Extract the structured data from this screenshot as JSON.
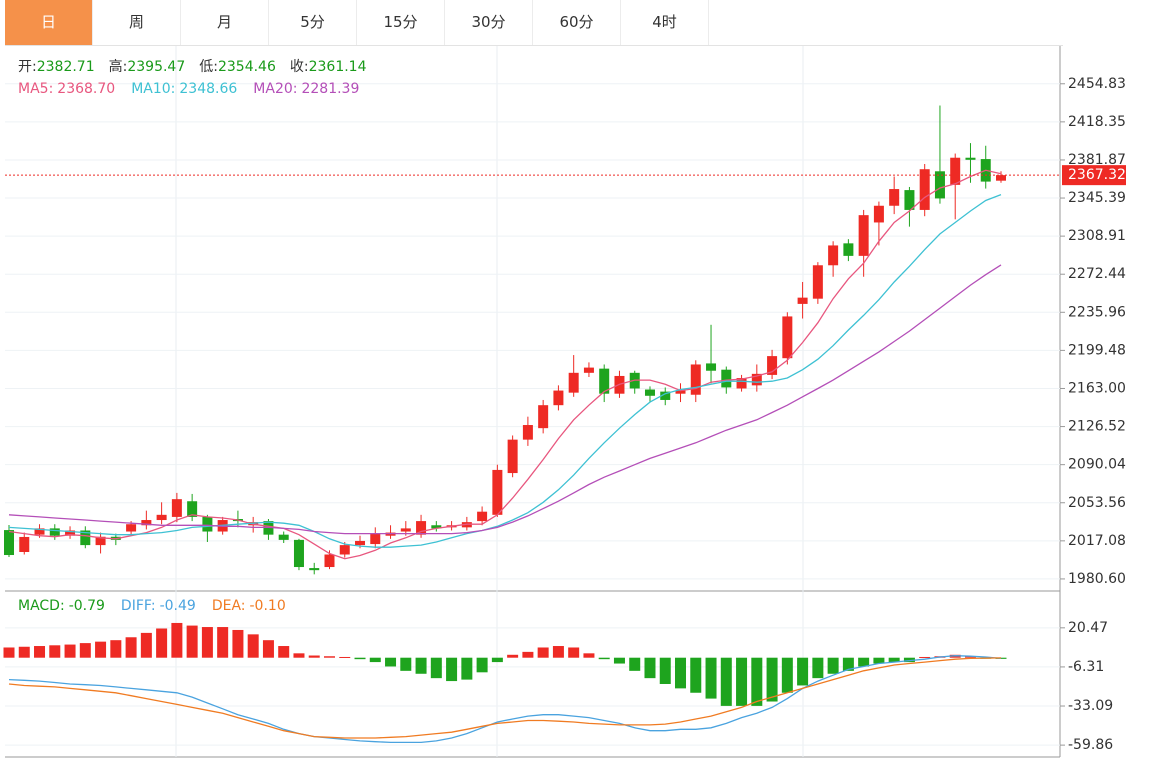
{
  "tabs": {
    "items": [
      "日",
      "周",
      "月",
      "5分",
      "15分",
      "30分",
      "60分",
      "4时"
    ],
    "active": 0
  },
  "info": [
    {
      "label": "开:",
      "value": 2382.71
    },
    {
      "label": "高:",
      "value": 2395.47
    },
    {
      "label": "低:",
      "value": 2354.46
    },
    {
      "label": "收:",
      "value": 2361.14
    }
  ],
  "chart_data": [
    {
      "type": "candlestick",
      "up_color": "#ee2a24",
      "down_color": "#1ea41e",
      "value_color": "#1a9a1a",
      "open": [
        2027.4,
        2006.4,
        2023,
        2029,
        2022,
        2027,
        2013,
        2021,
        2026,
        2032,
        2037,
        2040,
        2055,
        2040,
        2026,
        2038,
        2032,
        2036,
        2023,
        2018,
        1991,
        1992,
        2004,
        2013,
        2014,
        2022,
        2026,
        2023,
        2032,
        2030,
        2030,
        2036,
        2042,
        2082,
        2114,
        2125,
        2147,
        2159,
        2178,
        2182,
        2158,
        2178,
        2162,
        2160,
        2158,
        2157,
        2187,
        2181,
        2163,
        2166,
        2176,
        2192,
        2244,
        2249,
        2281,
        2302,
        2290,
        2322,
        2338,
        2353,
        2334,
        2371,
        2358,
        2384,
        2382.71,
        2362
      ],
      "high": [
        2032.2,
        2025,
        2033,
        2033,
        2031,
        2031,
        2025,
        2024,
        2036,
        2046,
        2054,
        2063,
        2062,
        2042,
        2040,
        2046,
        2040,
        2038,
        2026,
        2019,
        1996,
        2008,
        2016,
        2022,
        2030,
        2032,
        2036,
        2042,
        2036,
        2036,
        2040,
        2050,
        2090,
        2118,
        2136,
        2152,
        2166,
        2195,
        2188,
        2186,
        2180,
        2180,
        2165,
        2164,
        2168,
        2190,
        2224,
        2184,
        2176,
        2186,
        2200,
        2236,
        2265,
        2284,
        2304,
        2306,
        2334,
        2342,
        2366,
        2356,
        2378,
        2434,
        2388,
        2398,
        2395.47,
        2371
      ],
      "low": [
        2001.6,
        2004,
        2020,
        2018,
        2019,
        2010,
        2005,
        2013,
        2022,
        2028,
        2033,
        2035,
        2036,
        2016,
        2023,
        2030,
        2025,
        2018,
        2015,
        1989,
        1985,
        1990,
        2001,
        2010,
        2010,
        2019,
        2022,
        2020,
        2026,
        2027,
        2027,
        2032,
        2040,
        2078,
        2108,
        2120,
        2142,
        2155,
        2174,
        2150,
        2154,
        2158,
        2150,
        2147,
        2150,
        2150,
        2168,
        2158,
        2160,
        2160,
        2172,
        2186,
        2230,
        2244,
        2270,
        2285,
        2270,
        2300,
        2330,
        2318,
        2328,
        2340,
        2325,
        2360,
        2354.46,
        2360
      ],
      "close": [
        2003.5,
        2020.8,
        2029,
        2022,
        2027,
        2013,
        2021,
        2018,
        2033,
        2037,
        2042,
        2057,
        2040,
        2026,
        2037,
        2036,
        2035,
        2023,
        2018,
        1992,
        1989,
        2004,
        2013,
        2017,
        2024,
        2025,
        2029,
        2036,
        2029,
        2032,
        2035,
        2045,
        2085,
        2114,
        2128,
        2147,
        2161,
        2178,
        2183,
        2158,
        2175,
        2163,
        2156,
        2152,
        2161,
        2186,
        2180,
        2164,
        2173,
        2177,
        2194,
        2232,
        2250,
        2281,
        2300,
        2290,
        2329,
        2338,
        2354,
        2334,
        2373,
        2345,
        2384,
        2382,
        2361.14,
        2367.32
      ],
      "series": [
        {
          "name": "MA5:",
          "color": "#e8577f",
          "legend_label": "2368.70",
          "values": [
            2026,
            2024,
            2022,
            2021,
            2023,
            2022,
            2020,
            2019,
            2022,
            2025,
            2030,
            2037,
            2042,
            2040,
            2039,
            2037,
            2033,
            2031,
            2029,
            2023,
            2014,
            2005,
            2000,
            2003,
            2008,
            2015,
            2020,
            2026,
            2029,
            2031,
            2033,
            2033,
            2042,
            2058,
            2076,
            2095,
            2115,
            2133,
            2147,
            2160,
            2167,
            2171,
            2171,
            2167,
            2161,
            2163,
            2169,
            2171,
            2172,
            2175,
            2179,
            2190,
            2207,
            2226,
            2249,
            2268,
            2283,
            2304,
            2322,
            2333,
            2346,
            2355,
            2359,
            2366,
            2372,
            2368.7
          ]
        },
        {
          "name": "MA10:",
          "color": "#3ec1d3",
          "values": [
            2030,
            2029,
            2028,
            2027,
            2026,
            2025,
            2024,
            2023,
            2023,
            2024,
            2025,
            2027,
            2030,
            2031,
            2032,
            2033,
            2034,
            2035,
            2034,
            2032,
            2026,
            2019,
            2014,
            2012,
            2011,
            2011,
            2012,
            2013,
            2016,
            2020,
            2024,
            2027,
            2031,
            2037,
            2044,
            2054,
            2066,
            2080,
            2096,
            2111,
            2125,
            2138,
            2150,
            2158,
            2162,
            2164,
            2167,
            2170,
            2170,
            2169,
            2170,
            2173,
            2181,
            2191,
            2204,
            2219,
            2233,
            2248,
            2265,
            2280,
            2296,
            2311,
            2322,
            2333,
            2343,
            2348.66
          ]
        },
        {
          "name": "MA20:",
          "color": "#b44fb8",
          "values": [
            2042,
            2041,
            2040,
            2039,
            2038,
            2037,
            2036,
            2035,
            2034,
            2033,
            2032,
            2032,
            2032,
            2032,
            2031,
            2031,
            2030,
            2030,
            2029,
            2028,
            2026,
            2025,
            2024,
            2024,
            2024,
            2024,
            2024,
            2024,
            2024,
            2024,
            2025,
            2027,
            2030,
            2035,
            2041,
            2048,
            2055,
            2063,
            2071,
            2078,
            2084,
            2090,
            2096,
            2101,
            2106,
            2111,
            2117,
            2123,
            2128,
            2133,
            2140,
            2147,
            2155,
            2163,
            2171,
            2180,
            2189,
            2198,
            2208,
            2218,
            2229,
            2240,
            2251,
            2262,
            2272,
            2281.39
          ]
        }
      ],
      "ylim": [
        1970,
        2491
      ],
      "yticks": [
        2454.83,
        2418.35,
        2381.87,
        2345.39,
        2308.91,
        2272.44,
        2235.96,
        2199.48,
        {
          "value": 2163,
          "label": "2163.00"
        },
        2126.52,
        2090.04,
        2053.56,
        2017.08,
        {
          "value": 1980.6,
          "label": "1980.60"
        }
      ],
      "grid": true
    },
    {
      "type": "macd",
      "bars_name": "MACD:",
      "bars_color": "#1a9a1a",
      "up_color": "#ee2a24",
      "down_color": "#1ea41e",
      "bars": [
        7,
        7.5,
        8,
        8.5,
        9,
        10,
        11,
        12,
        14,
        17,
        20,
        23.8,
        22,
        21,
        21,
        19,
        16,
        12,
        8,
        3,
        1.5,
        1,
        0.5,
        -1,
        -3,
        -6,
        -9,
        -11,
        -14,
        -16,
        -15,
        -10,
        -3,
        2,
        4,
        7,
        8,
        7,
        3,
        -1,
        -4,
        -9,
        -14,
        -18,
        -21,
        -24,
        -28,
        -33,
        -33,
        -33,
        -30,
        -24,
        -19,
        -14,
        -11,
        -9,
        -6,
        -4,
        -3,
        -3,
        0.5,
        1,
        2,
        1,
        -0.5,
        -0.79
      ],
      "series": [
        {
          "name": "DIFF:",
          "color": "#4aa3df",
          "values": [
            -15,
            -15.5,
            -16,
            -17,
            -18,
            -18.5,
            -19,
            -20,
            -21,
            -22,
            -23,
            -24,
            -27,
            -31,
            -35,
            -39,
            -42,
            -45,
            -49,
            -52,
            -54,
            -55,
            -56,
            -57,
            -57.5,
            -58,
            -58,
            -58,
            -57,
            -55,
            -52,
            -48,
            -44,
            -42,
            -40,
            -39,
            -39,
            -40,
            -41,
            -43,
            -45,
            -48,
            -50,
            -50,
            -49,
            -49,
            -48,
            -45,
            -41,
            -38,
            -34,
            -28,
            -21,
            -16,
            -12,
            -8,
            -6,
            -4,
            -3,
            -2,
            -1,
            0.5,
            1.4,
            1,
            0.5,
            -0.49
          ]
        },
        {
          "name": "DEA:",
          "color": "#f07b22",
          "legend_label": "-0.10",
          "values": [
            -18,
            -19,
            -19.5,
            -20,
            -21,
            -22,
            -23,
            -24,
            -26,
            -28,
            -30,
            -32,
            -34,
            -36,
            -38,
            -41,
            -44,
            -47,
            -50,
            -52,
            -54,
            -54.5,
            -55,
            -55,
            -55,
            -54.5,
            -54,
            -53,
            -52,
            -51,
            -49,
            -47,
            -45,
            -44,
            -43,
            -43,
            -43.5,
            -44,
            -45,
            -45.5,
            -46,
            -46,
            -46,
            -45.5,
            -44,
            -42,
            -40,
            -37,
            -34,
            -30,
            -27,
            -24,
            -21,
            -18,
            -15,
            -12,
            -9,
            -7,
            -5,
            -4,
            -3,
            -2,
            -1,
            -0.5,
            -0.3,
            -0.1
          ]
        }
      ],
      "ylim": [
        -68,
        45
      ],
      "yticks": [
        20.47,
        -6.31,
        -33.09,
        -59.86
      ],
      "grid": true
    }
  ]
}
